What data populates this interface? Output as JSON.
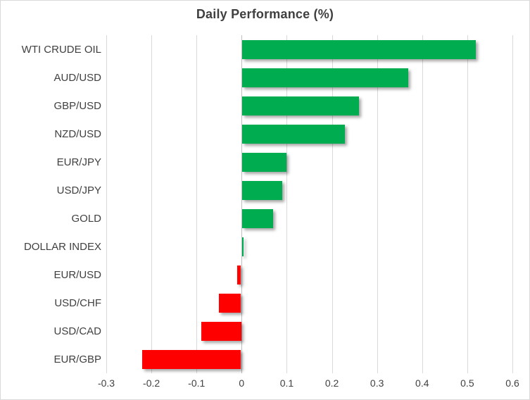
{
  "title": "Daily Performance (%)",
  "colors": {
    "positive_bar": "#00AC50",
    "negative_bar": "#FF0000",
    "gridline": "#D9D9D9",
    "zero_axis_line": "#BFBFBF",
    "text": "#404040",
    "frame_border": "#D9D9D9",
    "background": "#FFFFFF"
  },
  "chart_data": {
    "type": "bar",
    "orientation": "horizontal",
    "title": "Daily Performance (%)",
    "categories": [
      "WTI CRUDE OIL",
      "AUD/USD",
      "GBP/USD",
      "NZD/USD",
      "EUR/JPY",
      "USD/JPY",
      "GOLD",
      "DOLLAR INDEX",
      "EUR/USD",
      "USD/CHF",
      "USD/CAD",
      "EUR/GBP"
    ],
    "values": [
      0.52,
      0.37,
      0.26,
      0.23,
      0.1,
      0.09,
      0.07,
      0.005,
      -0.01,
      -0.05,
      -0.09,
      -0.22
    ],
    "xlabel": "",
    "ylabel": "",
    "xlim": [
      -0.3,
      0.6
    ],
    "xticks": [
      -0.3,
      -0.2,
      -0.1,
      0,
      0.1,
      0.2,
      0.3,
      0.4,
      0.5,
      0.6
    ],
    "xtick_labels": [
      "-0.3",
      "-0.2",
      "-0.1",
      "0",
      "0.1",
      "0.2",
      "0.3",
      "0.4",
      "0.5",
      "0.6"
    ],
    "grid": true,
    "legend": false,
    "data_labels": false,
    "color_rule": "green for positive values, red for negative values"
  }
}
